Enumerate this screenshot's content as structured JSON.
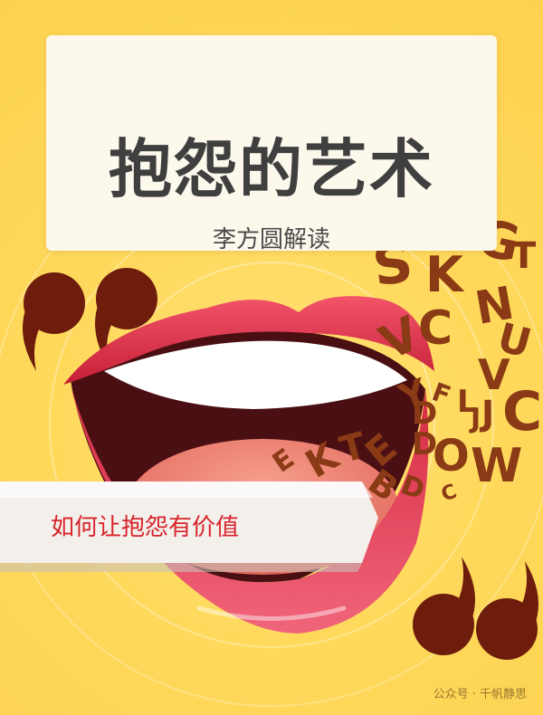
{
  "cover": {
    "title": "抱怨的艺术",
    "subtitle": "李方圆解读",
    "banner_text": "如何让抱怨有价值",
    "watermark": "公众号 · 千帆静思",
    "letters": [
      "S",
      "K",
      "G",
      "T",
      "N",
      "C",
      "U",
      "V",
      "C",
      "J",
      "V",
      "Y",
      "D",
      "L",
      "J",
      "F",
      "K",
      "T",
      "E",
      "D",
      "O",
      "W",
      "B",
      "D",
      "C",
      "E"
    ]
  },
  "colors": {
    "background": "#ffd95a",
    "card": "#fdf8ec",
    "title_text": "#3f3f3f",
    "banner_text": "#d8232a",
    "lips": "#e03247",
    "letters": "#8a3a14"
  }
}
